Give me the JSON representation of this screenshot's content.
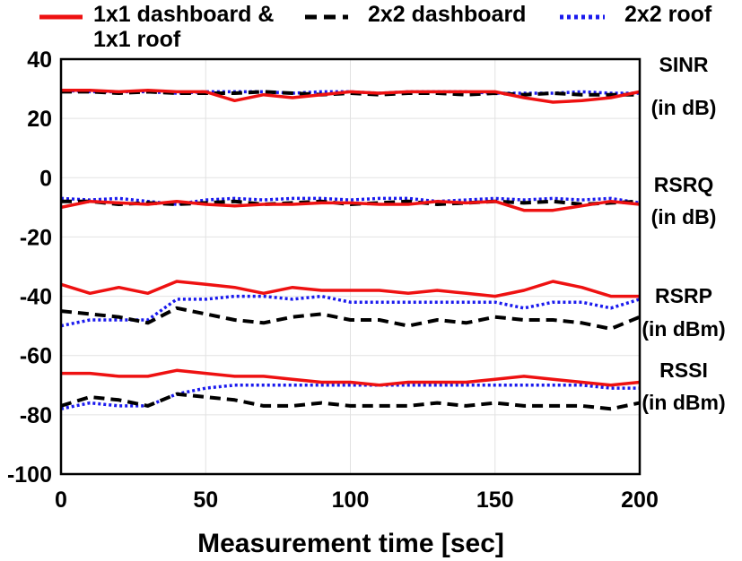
{
  "chart_data": {
    "type": "line",
    "title": "",
    "xlabel": "Measurement time [sec]",
    "ylabel": "",
    "xlim": [
      0,
      200
    ],
    "ylim": [
      -100,
      40
    ],
    "grid": true,
    "legend_position": "top",
    "x_ticks": [
      0,
      50,
      100,
      150,
      200
    ],
    "y_ticks": [
      40,
      20,
      0,
      -20,
      -40,
      -60,
      -80,
      -100
    ],
    "series": [
      {
        "name": "1x1 dashboard & 1x1 roof",
        "style": "solid",
        "color": "#ee1111"
      },
      {
        "name": "2x2 dashboard",
        "style": "dashed",
        "color": "#000000"
      },
      {
        "name": "2x2 roof",
        "style": "dotted",
        "color": "#1a1aee"
      }
    ],
    "groups": [
      {
        "label_line1": "SINR",
        "label_line2": "(in dB)",
        "x": [
          0,
          10,
          20,
          30,
          40,
          50,
          60,
          70,
          80,
          90,
          100,
          110,
          120,
          130,
          140,
          150,
          160,
          170,
          180,
          190,
          200
        ],
        "values": {
          "1x1 dashboard & 1x1 roof": [
            29.5,
            29.5,
            29,
            29.5,
            29,
            29,
            26,
            28,
            27,
            28,
            29,
            28.5,
            29,
            29,
            29,
            29,
            27,
            25.5,
            26,
            27,
            29
          ],
          "2x2 dashboard": [
            29,
            29,
            28.5,
            29,
            28.5,
            28.5,
            28.5,
            29,
            28.5,
            28,
            28.5,
            28,
            28.5,
            28.5,
            28,
            28.5,
            28,
            28.5,
            28,
            28,
            28
          ],
          "2x2 roof": [
            29.5,
            29,
            29,
            29,
            28.5,
            29,
            29,
            29,
            28.5,
            29,
            29,
            28.5,
            29,
            29,
            29,
            28.5,
            28.5,
            28.5,
            29,
            28.5,
            28.5
          ]
        }
      },
      {
        "label_line1": "RSRQ",
        "label_line2": "(in dB)",
        "x": [
          0,
          10,
          20,
          30,
          40,
          50,
          60,
          70,
          80,
          90,
          100,
          110,
          120,
          130,
          140,
          150,
          160,
          170,
          180,
          190,
          200
        ],
        "values": {
          "1x1 dashboard & 1x1 roof": [
            -10,
            -8,
            -8.5,
            -9,
            -8,
            -9,
            -9.5,
            -9,
            -9,
            -8.5,
            -8.5,
            -9,
            -9,
            -8,
            -8.5,
            -8,
            -11,
            -11,
            -9.5,
            -8,
            -9
          ],
          "2x2 dashboard": [
            -8,
            -8,
            -9,
            -8.5,
            -9,
            -8.5,
            -8,
            -9,
            -8.5,
            -8,
            -9,
            -8.5,
            -8,
            -9,
            -8.5,
            -8,
            -8.5,
            -8,
            -9,
            -8.5,
            -8
          ],
          "2x2 roof": [
            -7,
            -7.5,
            -7,
            -8,
            -9,
            -7.5,
            -7,
            -7.5,
            -7,
            -7,
            -7.5,
            -7,
            -7,
            -8,
            -7.5,
            -7,
            -7.5,
            -7,
            -7.5,
            -7,
            -8.5
          ]
        }
      },
      {
        "label_line1": "RSRP",
        "label_line2": "(in dBm)",
        "x": [
          0,
          10,
          20,
          30,
          40,
          50,
          60,
          70,
          80,
          90,
          100,
          110,
          120,
          130,
          140,
          150,
          160,
          170,
          180,
          190,
          200
        ],
        "values": {
          "1x1 dashboard & 1x1 roof": [
            -36,
            -39,
            -37,
            -39,
            -35,
            -36,
            -37,
            -39,
            -37,
            -38,
            -38,
            -38,
            -39,
            -38,
            -39,
            -40,
            -38,
            -35,
            -37,
            -40,
            -40
          ],
          "2x2 dashboard": [
            -45,
            -46,
            -47,
            -49,
            -44,
            -46,
            -48,
            -49,
            -47,
            -46,
            -48,
            -48,
            -50,
            -48,
            -49,
            -47,
            -48,
            -48,
            -49,
            -51,
            -47
          ],
          "2x2 roof": [
            -50,
            -48,
            -48,
            -48,
            -41,
            -41,
            -40,
            -40,
            -41,
            -40,
            -42,
            -42,
            -42,
            -42,
            -42,
            -42,
            -44,
            -42,
            -42,
            -44,
            -41
          ]
        }
      },
      {
        "label_line1": "RSSI",
        "label_line2": "(in dBm)",
        "x": [
          0,
          10,
          20,
          30,
          40,
          50,
          60,
          70,
          80,
          90,
          100,
          110,
          120,
          130,
          140,
          150,
          160,
          170,
          180,
          190,
          200
        ],
        "values": {
          "1x1 dashboard & 1x1 roof": [
            -66,
            -66,
            -67,
            -67,
            -65,
            -66,
            -67,
            -67,
            -68,
            -69,
            -69,
            -70,
            -69,
            -69,
            -69,
            -68,
            -67,
            -68,
            -69,
            -70,
            -69
          ],
          "2x2 dashboard": [
            -77,
            -74,
            -75,
            -77,
            -73,
            -74,
            -75,
            -77,
            -77,
            -76,
            -77,
            -77,
            -77,
            -76,
            -77,
            -76,
            -77,
            -77,
            -77,
            -78,
            -76
          ],
          "2x2 roof": [
            -78,
            -76,
            -77,
            -77,
            -73,
            -71,
            -70,
            -70,
            -70,
            -70,
            -70,
            -70,
            -70,
            -70,
            -70,
            -70,
            -70,
            -70,
            -70,
            -71,
            -71
          ]
        }
      }
    ]
  }
}
